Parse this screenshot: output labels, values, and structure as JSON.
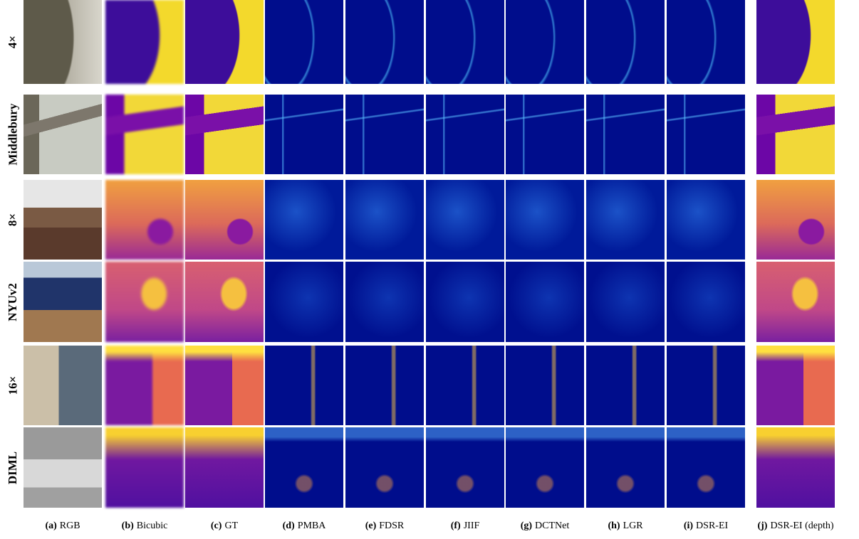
{
  "row_labels": [
    "4×",
    "Middlebury",
    "8×",
    "NYUv2",
    "16×",
    "DIML"
  ],
  "columns": [
    {
      "letter": "(a)",
      "name": "RGB"
    },
    {
      "letter": "(b)",
      "name": "Bicubic"
    },
    {
      "letter": "(c)",
      "name": "GT"
    },
    {
      "letter": "(d)",
      "name": "PMBA"
    },
    {
      "letter": "(e)",
      "name": "FDSR"
    },
    {
      "letter": "(f)",
      "name": "JIIF"
    },
    {
      "letter": "(g)",
      "name": "DCTNet"
    },
    {
      "letter": "(h)",
      "name": "LGR"
    },
    {
      "letter": "(i)",
      "name": "DSR-EI"
    },
    {
      "letter": "(j)",
      "name": "DSR-EI (depth)"
    }
  ]
}
